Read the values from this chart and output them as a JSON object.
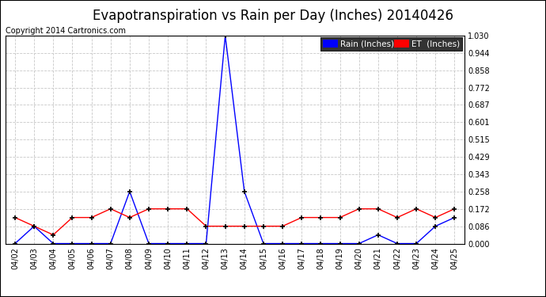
{
  "title": "Evapotranspiration vs Rain per Day (Inches) 20140426",
  "copyright": "Copyright 2014 Cartronics.com",
  "x_labels": [
    "04/02",
    "04/03",
    "04/04",
    "04/05",
    "04/06",
    "04/07",
    "04/08",
    "04/09",
    "04/10",
    "04/11",
    "04/12",
    "04/13",
    "04/14",
    "04/15",
    "04/16",
    "04/17",
    "04/18",
    "04/19",
    "04/20",
    "04/21",
    "04/22",
    "04/23",
    "04/24",
    "04/25"
  ],
  "rain_values": [
    0.0,
    0.086,
    0.0,
    0.0,
    0.0,
    0.0,
    0.258,
    0.0,
    0.0,
    0.0,
    0.0,
    1.03,
    0.258,
    0.0,
    0.0,
    0.0,
    0.0,
    0.0,
    0.0,
    0.043,
    0.0,
    0.0,
    0.086,
    0.129
  ],
  "et_values": [
    0.129,
    0.086,
    0.043,
    0.129,
    0.129,
    0.172,
    0.129,
    0.172,
    0.172,
    0.172,
    0.086,
    0.086,
    0.086,
    0.086,
    0.086,
    0.129,
    0.129,
    0.129,
    0.172,
    0.172,
    0.129,
    0.172,
    0.129,
    0.172
  ],
  "rain_color": "#0000ff",
  "et_color": "#ff0000",
  "ylim": [
    0.0,
    1.03
  ],
  "yticks": [
    0.0,
    0.086,
    0.172,
    0.258,
    0.343,
    0.429,
    0.515,
    0.601,
    0.687,
    0.772,
    0.858,
    0.944,
    1.03
  ],
  "bg_color": "#ffffff",
  "grid_color": "#c8c8c8",
  "legend_rain_bg": "#0000ff",
  "legend_et_bg": "#ff0000",
  "legend_rain_text": "Rain (Inches)",
  "title_fontsize": 12,
  "copyright_fontsize": 7,
  "tick_fontsize": 7,
  "border_color": "#000000"
}
